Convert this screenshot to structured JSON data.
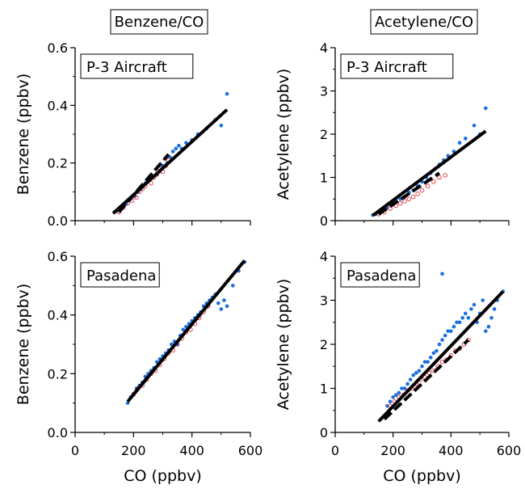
{
  "column_titles": [
    "Benzene/CO",
    "Acetylene/CO"
  ],
  "colors": {
    "blue": "#1a6fe0",
    "red": "#e0303a",
    "line": "#000000"
  },
  "chart_data": [
    {
      "type": "scatter",
      "panel": "top-left",
      "label": "P-3 Aircraft",
      "ylabel": "Benzene (ppbv)",
      "xlabel": "",
      "xlim": [
        0,
        600
      ],
      "ylim": [
        0,
        0.6
      ],
      "xticks": [
        0,
        200,
        400,
        600
      ],
      "yticks": [
        "0.0",
        "0.2",
        "0.4",
        "0.6"
      ],
      "fits": [
        {
          "style": "solid",
          "x": [
            130,
            520
          ],
          "y": [
            0.025,
            0.385
          ]
        },
        {
          "style": "dashed",
          "x": [
            150,
            320
          ],
          "y": [
            0.03,
            0.23
          ]
        }
      ],
      "series": [
        {
          "color": "blue",
          "marker": "filled",
          "x": [
            135,
            145,
            155,
            165,
            175,
            190,
            205,
            215,
            225,
            240,
            250,
            265,
            280,
            290,
            300,
            315,
            325,
            335,
            345,
            355,
            365,
            380,
            400,
            420,
            450,
            480,
            500,
            520
          ],
          "y": [
            0.03,
            0.035,
            0.045,
            0.05,
            0.06,
            0.075,
            0.085,
            0.1,
            0.11,
            0.13,
            0.14,
            0.15,
            0.16,
            0.17,
            0.19,
            0.2,
            0.22,
            0.24,
            0.25,
            0.26,
            0.25,
            0.27,
            0.28,
            0.3,
            0.32,
            0.35,
            0.33,
            0.44
          ]
        },
        {
          "color": "red",
          "marker": "open",
          "x": [
            150,
            165,
            180,
            195,
            210,
            220,
            230,
            240,
            250,
            260,
            270,
            280,
            290,
            300,
            310,
            320
          ],
          "y": [
            0.03,
            0.045,
            0.06,
            0.07,
            0.08,
            0.1,
            0.11,
            0.12,
            0.14,
            0.13,
            0.15,
            0.16,
            0.18,
            0.17,
            0.19,
            0.21
          ]
        }
      ]
    },
    {
      "type": "scatter",
      "panel": "top-right",
      "label": "P-3 Aircraft",
      "ylabel": "Acetylene (ppbv)",
      "xlabel": "",
      "xlim": [
        0,
        600
      ],
      "ylim": [
        0,
        4
      ],
      "xticks": [
        0,
        200,
        400,
        600
      ],
      "yticks": [
        "0",
        "1",
        "2",
        "3",
        "4"
      ],
      "fits": [
        {
          "style": "solid",
          "x": [
            130,
            520
          ],
          "y": [
            0.12,
            2.07
          ]
        },
        {
          "style": "dashed",
          "x": [
            150,
            360
          ],
          "y": [
            0.15,
            1.1
          ]
        }
      ],
      "series": [
        {
          "color": "blue",
          "marker": "filled",
          "x": [
            130,
            140,
            150,
            165,
            180,
            195,
            210,
            225,
            240,
            255,
            270,
            285,
            300,
            315,
            330,
            345,
            360,
            375,
            390,
            410,
            430,
            450,
            480,
            500,
            520
          ],
          "y": [
            0.13,
            0.15,
            0.2,
            0.25,
            0.3,
            0.38,
            0.45,
            0.5,
            0.55,
            0.65,
            0.7,
            0.8,
            0.9,
            1.0,
            1.1,
            1.2,
            1.3,
            1.4,
            1.5,
            1.6,
            1.8,
            1.9,
            2.2,
            2.0,
            2.6
          ]
        },
        {
          "color": "red",
          "marker": "open",
          "x": [
            150,
            170,
            190,
            210,
            225,
            240,
            255,
            270,
            285,
            300,
            320,
            340,
            360,
            380
          ],
          "y": [
            0.15,
            0.2,
            0.28,
            0.35,
            0.4,
            0.45,
            0.5,
            0.55,
            0.62,
            0.7,
            0.8,
            0.9,
            1.0,
            1.05
          ]
        }
      ]
    },
    {
      "type": "scatter",
      "panel": "bottom-left",
      "label": "Pasadena",
      "ylabel": "Benzene (ppbv)",
      "xlabel": "CO (ppbv)",
      "xlim": [
        0,
        600
      ],
      "ylim": [
        0,
        0.6
      ],
      "xticks": [
        0,
        200,
        400,
        600
      ],
      "yticks": [
        "0.0",
        "0.2",
        "0.4",
        "0.6"
      ],
      "fits": [
        {
          "style": "solid",
          "x": [
            180,
            580
          ],
          "y": [
            0.105,
            0.585
          ]
        },
        {
          "style": "dashed",
          "x": [
            200,
            460
          ],
          "y": [
            0.13,
            0.44
          ]
        }
      ],
      "series": [
        {
          "color": "blue",
          "marker": "filled",
          "x": [
            180,
            190,
            200,
            210,
            220,
            230,
            240,
            250,
            260,
            270,
            280,
            290,
            300,
            310,
            320,
            330,
            340,
            350,
            360,
            370,
            380,
            390,
            400,
            410,
            420,
            430,
            440,
            450,
            460,
            470,
            480,
            490,
            500,
            510,
            520,
            540,
            560,
            580
          ],
          "y": [
            0.1,
            0.12,
            0.13,
            0.15,
            0.16,
            0.17,
            0.19,
            0.2,
            0.21,
            0.22,
            0.24,
            0.25,
            0.26,
            0.27,
            0.28,
            0.3,
            0.31,
            0.3,
            0.33,
            0.35,
            0.36,
            0.37,
            0.38,
            0.39,
            0.4,
            0.41,
            0.43,
            0.44,
            0.45,
            0.46,
            0.47,
            0.44,
            0.42,
            0.45,
            0.43,
            0.5,
            0.55,
            0.58
          ]
        },
        {
          "color": "red",
          "marker": "open",
          "x": [
            200,
            215,
            230,
            245,
            260,
            275,
            290,
            305,
            320,
            335,
            350,
            365,
            380,
            395,
            410,
            425,
            440,
            455
          ],
          "y": [
            0.13,
            0.15,
            0.16,
            0.18,
            0.2,
            0.21,
            0.23,
            0.25,
            0.27,
            0.28,
            0.3,
            0.32,
            0.34,
            0.35,
            0.37,
            0.39,
            0.41,
            0.43
          ]
        }
      ]
    },
    {
      "type": "scatter",
      "panel": "bottom-right",
      "label": "Pasadena",
      "ylabel": "Acetylene (ppbv)",
      "xlabel": "CO (ppbv)",
      "xlim": [
        0,
        600
      ],
      "ylim": [
        0,
        4
      ],
      "xticks": [
        0,
        200,
        400,
        600
      ],
      "yticks": [
        "0",
        "1",
        "2",
        "3",
        "4"
      ],
      "fits": [
        {
          "style": "solid",
          "x": [
            150,
            580
          ],
          "y": [
            0.25,
            3.2
          ]
        },
        {
          "style": "dashed",
          "x": [
            170,
            460
          ],
          "y": [
            0.3,
            2.1
          ]
        }
      ],
      "series": [
        {
          "color": "blue",
          "marker": "filled",
          "x": [
            180,
            190,
            200,
            210,
            220,
            230,
            240,
            250,
            260,
            270,
            280,
            290,
            300,
            310,
            320,
            330,
            340,
            350,
            360,
            370,
            380,
            390,
            400,
            410,
            420,
            430,
            440,
            450,
            460,
            470,
            480,
            490,
            500,
            510,
            520,
            530,
            540,
            550,
            560,
            580,
            370
          ],
          "y": [
            0.6,
            0.7,
            0.8,
            0.85,
            0.9,
            1.0,
            1.0,
            1.1,
            1.2,
            1.3,
            1.35,
            1.4,
            1.5,
            1.6,
            1.6,
            1.7,
            1.8,
            1.85,
            2.0,
            2.1,
            2.2,
            2.3,
            2.3,
            2.4,
            2.5,
            2.5,
            2.6,
            2.7,
            2.6,
            2.8,
            2.9,
            2.5,
            2.7,
            3.0,
            2.3,
            2.4,
            2.6,
            2.8,
            3.0,
            3.2,
            3.6
          ]
        },
        {
          "color": "red",
          "marker": "open",
          "x": [
            190,
            205,
            220,
            235,
            250,
            265,
            280,
            295,
            310,
            325,
            340,
            355,
            370,
            385,
            400,
            415,
            430,
            445,
            460
          ],
          "y": [
            0.6,
            0.7,
            0.8,
            0.85,
            0.95,
            1.0,
            1.1,
            1.2,
            1.25,
            1.35,
            1.4,
            1.5,
            1.6,
            1.65,
            1.75,
            1.85,
            1.9,
            2.0,
            2.1
          ]
        }
      ]
    }
  ]
}
